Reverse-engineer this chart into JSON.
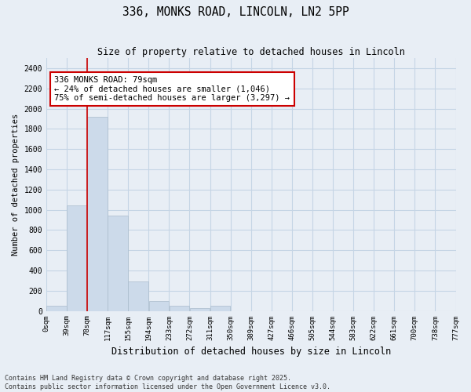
{
  "title1": "336, MONKS ROAD, LINCOLN, LN2 5PP",
  "title2": "Size of property relative to detached houses in Lincoln",
  "xlabel": "Distribution of detached houses by size in Lincoln",
  "ylabel": "Number of detached properties",
  "bar_color": "#ccdaea",
  "bar_edge_color": "#aabccc",
  "grid_color": "#c5d5e5",
  "background_color": "#e8eef5",
  "annotation_box_color": "#cc0000",
  "vline_color": "#cc0000",
  "bin_labels": [
    "0sqm",
    "39sqm",
    "78sqm",
    "117sqm",
    "155sqm",
    "194sqm",
    "233sqm",
    "272sqm",
    "311sqm",
    "350sqm",
    "389sqm",
    "427sqm",
    "466sqm",
    "505sqm",
    "544sqm",
    "583sqm",
    "622sqm",
    "661sqm",
    "700sqm",
    "738sqm",
    "777sqm"
  ],
  "values": [
    50,
    1046,
    1920,
    940,
    290,
    100,
    50,
    30,
    50,
    0,
    0,
    0,
    0,
    0,
    0,
    0,
    0,
    0,
    0,
    0
  ],
  "ylim": [
    0,
    2500
  ],
  "yticks": [
    0,
    200,
    400,
    600,
    800,
    1000,
    1200,
    1400,
    1600,
    1800,
    2000,
    2200,
    2400
  ],
  "property_bin": 2,
  "annotation_title": "336 MONKS ROAD: 79sqm",
  "annotation_line1": "← 24% of detached houses are smaller (1,046)",
  "annotation_line2": "75% of semi-detached houses are larger (3,297) →",
  "footer1": "Contains HM Land Registry data © Crown copyright and database right 2025.",
  "footer2": "Contains public sector information licensed under the Open Government Licence v3.0."
}
